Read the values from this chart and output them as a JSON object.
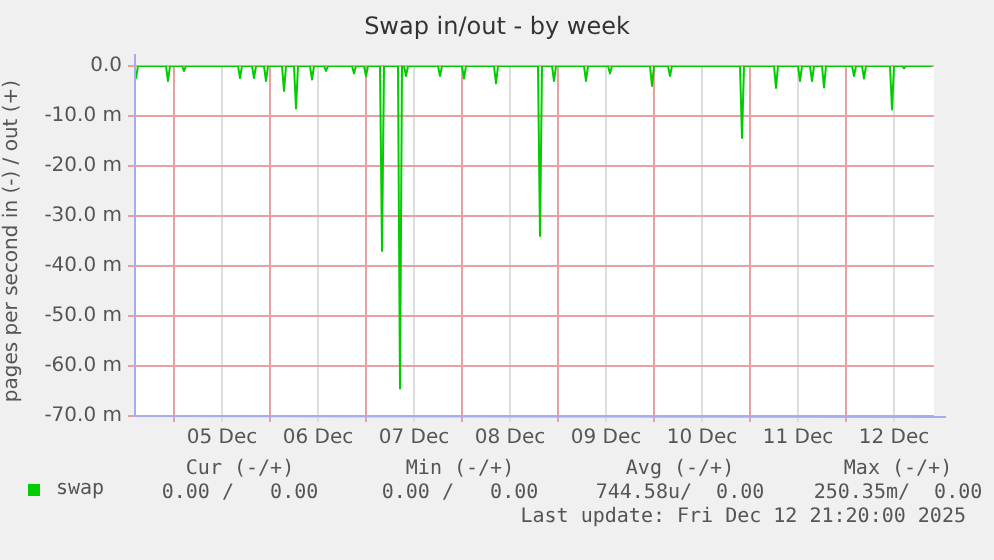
{
  "chart_data": {
    "type": "line",
    "title": "Swap in/out - by week",
    "ylabel": "pages per second in (-) / out (+)",
    "x": [
      "2025-12-04T14:00",
      "2025-12-04T14:30",
      "2025-12-04T15:00",
      "2025-12-04T22:00",
      "2025-12-04T22:30",
      "2025-12-04T23:00",
      "2025-12-05T02:00",
      "2025-12-05T02:30",
      "2025-12-05T03:00",
      "2025-12-05T16:00",
      "2025-12-05T16:30",
      "2025-12-05T17:00",
      "2025-12-05T19:30",
      "2025-12-05T20:00",
      "2025-12-05T20:30",
      "2025-12-05T22:30",
      "2025-12-05T23:00",
      "2025-12-05T23:30",
      "2025-12-06T03:00",
      "2025-12-06T03:30",
      "2025-12-06T04:00",
      "2025-12-06T06:00",
      "2025-12-06T06:30",
      "2025-12-06T07:00",
      "2025-12-06T10:00",
      "2025-12-06T10:30",
      "2025-12-06T11:00",
      "2025-12-06T13:30",
      "2025-12-06T14:00",
      "2025-12-06T14:30",
      "2025-12-06T20:30",
      "2025-12-06T21:00",
      "2025-12-06T21:30",
      "2025-12-06T23:30",
      "2025-12-07T00:00",
      "2025-12-07T00:30",
      "2025-12-07T03:30",
      "2025-12-07T04:00",
      "2025-12-07T04:30",
      "2025-12-07T08:00",
      "2025-12-07T08:30",
      "2025-12-07T09:00",
      "2025-12-07T09:30",
      "2025-12-07T10:00",
      "2025-12-07T10:30",
      "2025-12-07T18:00",
      "2025-12-07T18:30",
      "2025-12-07T19:00",
      "2025-12-08T00:00",
      "2025-12-08T00:30",
      "2025-12-08T01:00",
      "2025-12-08T08:00",
      "2025-12-08T08:30",
      "2025-12-08T09:00",
      "2025-12-08T19:00",
      "2025-12-08T19:30",
      "2025-12-08T20:00",
      "2025-12-08T22:30",
      "2025-12-08T23:00",
      "2025-12-08T23:30",
      "2025-12-09T06:30",
      "2025-12-09T07:00",
      "2025-12-09T07:30",
      "2025-12-09T12:30",
      "2025-12-09T13:00",
      "2025-12-09T13:30",
      "2025-12-09T23:00",
      "2025-12-09T23:30",
      "2025-12-10T00:00",
      "2025-12-10T03:30",
      "2025-12-10T04:00",
      "2025-12-10T04:30",
      "2025-12-10T21:30",
      "2025-12-10T22:00",
      "2025-12-10T22:30",
      "2025-12-11T06:00",
      "2025-12-11T06:30",
      "2025-12-11T07:00",
      "2025-12-11T12:00",
      "2025-12-11T12:30",
      "2025-12-11T13:00",
      "2025-12-11T15:00",
      "2025-12-11T15:30",
      "2025-12-11T16:00",
      "2025-12-11T18:00",
      "2025-12-11T18:30",
      "2025-12-11T19:00",
      "2025-12-12T01:30",
      "2025-12-12T02:00",
      "2025-12-12T02:30",
      "2025-12-12T04:00",
      "2025-12-12T04:30",
      "2025-12-12T05:00",
      "2025-12-12T11:00",
      "2025-12-12T11:30",
      "2025-12-12T12:00",
      "2025-12-12T14:00",
      "2025-12-12T14:30",
      "2025-12-12T15:00",
      "2025-12-12T21:30"
    ],
    "series": [
      {
        "name": "swap",
        "color": "#00cc00",
        "values": [
          0,
          -2.4,
          0,
          0,
          -3,
          0,
          0,
          -1,
          0,
          0,
          -2.4,
          0,
          0,
          -2.4,
          0,
          0,
          -3,
          0,
          0,
          -5,
          0,
          0,
          -8.5,
          0,
          0,
          -2.7,
          0,
          0,
          -1,
          0,
          0,
          -1.5,
          0,
          0,
          -2,
          0,
          0,
          -37,
          0,
          0,
          -64.5,
          0,
          0,
          -2,
          0,
          0,
          -2,
          0,
          0,
          -2.5,
          0,
          0,
          -3.5,
          0,
          0,
          -34,
          0,
          0,
          -3,
          0,
          0,
          -3,
          0,
          0,
          -1.5,
          0,
          0,
          -4,
          0,
          0,
          -2,
          0,
          0,
          -14.4,
          0,
          0,
          -4.4,
          0,
          0,
          -3,
          0,
          0,
          -3,
          0,
          0,
          -4.3,
          0,
          0,
          -2,
          0,
          0,
          -2.5,
          0,
          0,
          -8.7,
          0,
          0,
          -0.5,
          0,
          0
        ]
      }
    ],
    "xlim": [
      "2025-12-04T14:00",
      "2025-12-12T22:00"
    ],
    "xticks": [
      {
        "value": "2025-12-05T00:00",
        "label": null
      },
      {
        "value": "2025-12-05T12:00",
        "label": "05 Dec"
      },
      {
        "value": "2025-12-06T00:00",
        "label": null
      },
      {
        "value": "2025-12-06T12:00",
        "label": "06 Dec"
      },
      {
        "value": "2025-12-07T00:00",
        "label": null
      },
      {
        "value": "2025-12-07T12:00",
        "label": "07 Dec"
      },
      {
        "value": "2025-12-08T00:00",
        "label": null
      },
      {
        "value": "2025-12-08T12:00",
        "label": "08 Dec"
      },
      {
        "value": "2025-12-09T00:00",
        "label": null
      },
      {
        "value": "2025-12-09T12:00",
        "label": "09 Dec"
      },
      {
        "value": "2025-12-10T00:00",
        "label": null
      },
      {
        "value": "2025-12-10T12:00",
        "label": "10 Dec"
      },
      {
        "value": "2025-12-11T00:00",
        "label": null
      },
      {
        "value": "2025-12-11T12:00",
        "label": "11 Dec"
      },
      {
        "value": "2025-12-12T00:00",
        "label": null
      },
      {
        "value": "2025-12-12T12:00",
        "label": "12 Dec"
      }
    ],
    "ylim": [
      -70,
      0
    ],
    "yticks": [
      {
        "value": -70,
        "label": "-70.0 m"
      },
      {
        "value": -60,
        "label": "-60.0 m"
      },
      {
        "value": -50,
        "label": "-50.0 m"
      },
      {
        "value": -40,
        "label": "-40.0 m"
      },
      {
        "value": -30,
        "label": "-30.0 m"
      },
      {
        "value": -20,
        "label": "-20.0 m"
      },
      {
        "value": -10,
        "label": "-10.0 m"
      },
      {
        "value": 0,
        "label": "0.0"
      }
    ],
    "grid": true,
    "legend": "bottom left",
    "marker": "none",
    "line_style": "solid",
    "annotations": [
      "Cur (-/+)",
      "Min (-/+)",
      "Avg (-/+)",
      "Max (-/+)",
      "0.00 /   0.00",
      "0.00 /   0.00",
      "744.58u/  0.00",
      "250.35m/  0.00",
      "Last update: Fri Dec 12 21:20:00 2025"
    ]
  }
}
